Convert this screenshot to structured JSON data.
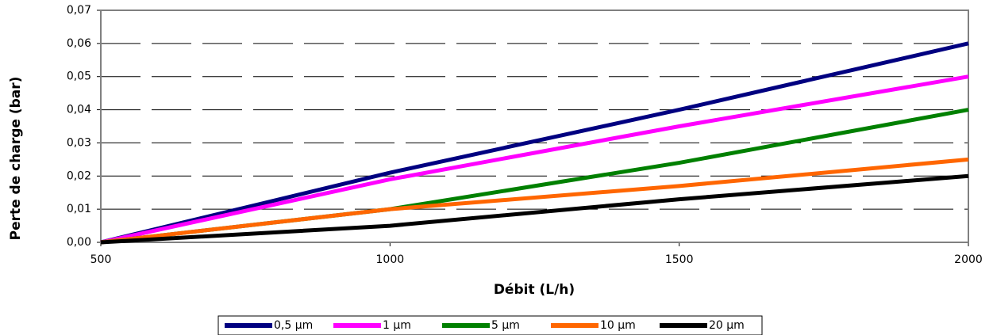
{
  "chart_data": {
    "type": "line",
    "x_label": "Débit (L/h)",
    "y_label": "Perte de charge  (bar)",
    "x": [
      500,
      1000,
      1500,
      2000
    ],
    "xlim": [
      500,
      2000
    ],
    "xticks": [
      500,
      1000,
      1500,
      2000
    ],
    "ylim": [
      0,
      0.07
    ],
    "yticks": [
      {
        "value": 0,
        "label": "0,00"
      },
      {
        "value": 0.01,
        "label": "0,01"
      },
      {
        "value": 0.02,
        "label": "0,02"
      },
      {
        "value": 0.03,
        "label": "0,03"
      },
      {
        "value": 0.04,
        "label": "0,04"
      },
      {
        "value": 0.05,
        "label": "0,05"
      },
      {
        "value": 0.06,
        "label": "0,06"
      },
      {
        "value": 0.07,
        "label": "0,07"
      }
    ],
    "grid": true,
    "legend": "bottom",
    "series": [
      {
        "name": "0,5 µm",
        "color": "#000080",
        "values": [
          0,
          0.021,
          0.04,
          0.06
        ]
      },
      {
        "name": "1 µm",
        "color": "#ff00ff",
        "values": [
          0,
          0.019,
          0.035,
          0.05
        ]
      },
      {
        "name": "5 µm",
        "color": "#008000",
        "values": [
          0,
          0.01,
          0.024,
          0.04
        ]
      },
      {
        "name": "10 µm",
        "color": "#ff6600",
        "values": [
          0,
          0.01,
          0.017,
          0.025
        ]
      },
      {
        "name": "20 µm",
        "color": "#000000",
        "values": [
          0,
          0.005,
          0.013,
          0.02
        ]
      }
    ]
  }
}
